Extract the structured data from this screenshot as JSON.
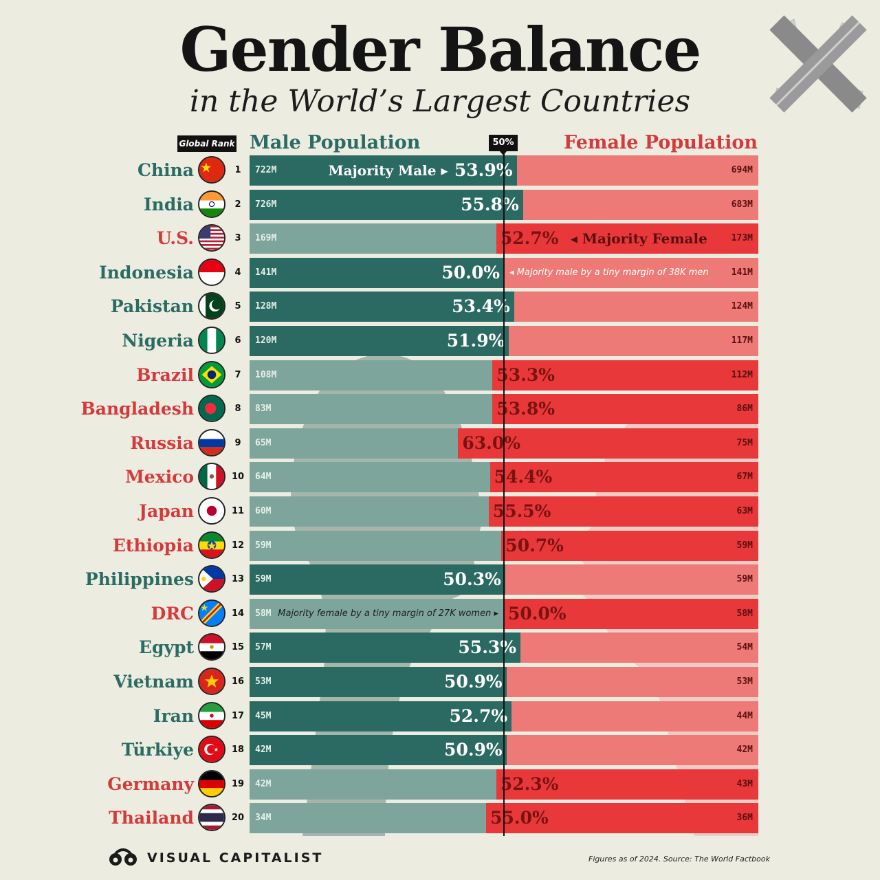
{
  "header": {
    "title": "Gender Balance",
    "subtitle": "in the World’s Largest Countries",
    "rank_label": "Global Rank",
    "male_label": "Male Population",
    "female_label": "Female Population",
    "midpoint_label": "50%"
  },
  "colors": {
    "male_majority": "#2b6a62",
    "male_minority": "#7ea59c",
    "female_majority": "#e8383a",
    "female_minority": "#ee7a78",
    "male_text": "#2a6b64",
    "female_text": "#d6393b",
    "background": "#ecece0"
  },
  "chart_data": {
    "type": "bar",
    "orientation": "horizontal",
    "stacked": "100%",
    "midpoint": 50,
    "title": "Gender Balance",
    "subtitle": "in the World’s Largest Countries",
    "series": [
      {
        "name": "Male Population"
      },
      {
        "name": "Female Population"
      }
    ],
    "rows": [
      {
        "rank": "1",
        "country": "China",
        "flag": "china-flag-icon",
        "male": "722M",
        "female": "694M",
        "majority": "male",
        "pct": "53.9%",
        "male_share": 51.0,
        "note": "Majority Male"
      },
      {
        "rank": "2",
        "country": "India",
        "flag": "india-flag-icon",
        "male": "726M",
        "female": "683M",
        "majority": "male",
        "pct": "55.8%",
        "male_share": 51.5
      },
      {
        "rank": "3",
        "country": "U.S.",
        "flag": "us-flag-icon",
        "male": "169M",
        "female": "173M",
        "majority": "female",
        "pct": "52.7%",
        "male_share": 49.4,
        "note": "Majority Female"
      },
      {
        "rank": "4",
        "country": "Indonesia",
        "flag": "indonesia-flag-icon",
        "male": "141M",
        "female": "141M",
        "majority": "male",
        "pct": "50.0%",
        "male_share": 50.0,
        "note": "Majority male by a tiny margin of 38K men"
      },
      {
        "rank": "5",
        "country": "Pakistan",
        "flag": "pakistan-flag-icon",
        "male": "128M",
        "female": "124M",
        "majority": "male",
        "pct": "53.4%",
        "male_share": 50.8
      },
      {
        "rank": "6",
        "country": "Nigeria",
        "flag": "nigeria-flag-icon",
        "male": "120M",
        "female": "117M",
        "majority": "male",
        "pct": "51.9%",
        "male_share": 50.4
      },
      {
        "rank": "7",
        "country": "Brazil",
        "flag": "brazil-flag-icon",
        "male": "108M",
        "female": "112M",
        "majority": "female",
        "pct": "53.3%",
        "male_share": 49.1
      },
      {
        "rank": "8",
        "country": "Bangladesh",
        "flag": "bangladesh-flag-icon",
        "male": "83M",
        "female": "86M",
        "majority": "female",
        "pct": "53.8%",
        "male_share": 49.1
      },
      {
        "rank": "9",
        "country": "Russia",
        "flag": "russia-flag-icon",
        "male": "65M",
        "female": "75M",
        "majority": "female",
        "pct": "63.0%",
        "male_share": 46.4
      },
      {
        "rank": "10",
        "country": "Mexico",
        "flag": "mexico-flag-icon",
        "male": "64M",
        "female": "67M",
        "majority": "female",
        "pct": "54.4%",
        "male_share": 48.9
      },
      {
        "rank": "11",
        "country": "Japan",
        "flag": "japan-flag-icon",
        "male": "60M",
        "female": "63M",
        "majority": "female",
        "pct": "55.5%",
        "male_share": 48.8
      },
      {
        "rank": "12",
        "country": "Ethiopia",
        "flag": "ethiopia-flag-icon",
        "male": "59M",
        "female": "59M",
        "majority": "female",
        "pct": "50.7%",
        "male_share": 49.8
      },
      {
        "rank": "13",
        "country": "Philippines",
        "flag": "philippines-flag-icon",
        "male": "59M",
        "female": "59M",
        "majority": "male",
        "pct": "50.3%",
        "male_share": 50.1
      },
      {
        "rank": "14",
        "country": "DRC",
        "flag": "drc-flag-icon",
        "male": "58M",
        "female": "58M",
        "majority": "female",
        "pct": "50.0%",
        "male_share": 50.0,
        "note": "Majority female by a tiny margin of 27K women"
      },
      {
        "rank": "15",
        "country": "Egypt",
        "flag": "egypt-flag-icon",
        "male": "57M",
        "female": "54M",
        "majority": "male",
        "pct": "55.3%",
        "male_share": 51.3
      },
      {
        "rank": "16",
        "country": "Vietnam",
        "flag": "vietnam-flag-icon",
        "male": "53M",
        "female": "53M",
        "majority": "male",
        "pct": "50.9%",
        "male_share": 50.2
      },
      {
        "rank": "17",
        "country": "Iran",
        "flag": "iran-flag-icon",
        "male": "45M",
        "female": "44M",
        "majority": "male",
        "pct": "52.7%",
        "male_share": 50.6
      },
      {
        "rank": "18",
        "country": "Türkiye",
        "flag": "turkiye-flag-icon",
        "male": "42M",
        "female": "42M",
        "majority": "male",
        "pct": "50.9%",
        "male_share": 50.2
      },
      {
        "rank": "19",
        "country": "Germany",
        "flag": "germany-flag-icon",
        "male": "42M",
        "female": "43M",
        "majority": "female",
        "pct": "52.3%",
        "male_share": 49.4
      },
      {
        "rank": "20",
        "country": "Thailand",
        "flag": "thailand-flag-icon",
        "male": "34M",
        "female": "36M",
        "majority": "female",
        "pct": "55.0%",
        "male_share": 48.6
      }
    ]
  },
  "footer": {
    "brand": "VISUAL CAPITALIST",
    "source": "Figures as of 2024. Source: The World Factbook"
  }
}
